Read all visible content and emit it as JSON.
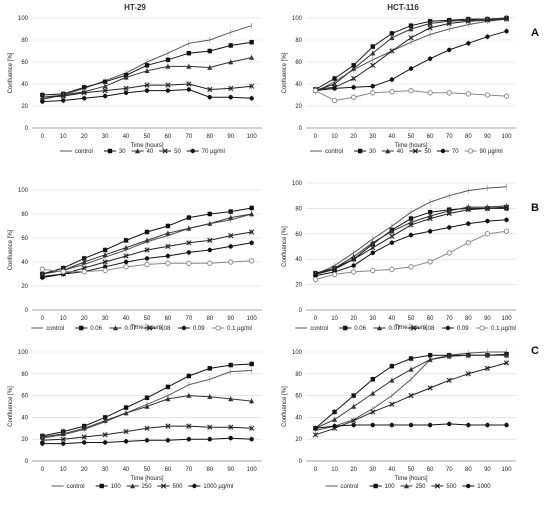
{
  "panel_titles": {
    "left": "HT-29",
    "right": "HCT-116"
  },
  "row_letters": [
    "A",
    "B",
    "C"
  ],
  "chart_data": [
    {
      "id": "A-HT29",
      "type": "line",
      "title": "HT-29",
      "xlabel": "Time [hours]",
      "ylabel": "Confluence [%]",
      "ylim": [
        0,
        100
      ],
      "yticks": [
        0,
        20,
        40,
        60,
        80,
        100
      ],
      "x": [
        0,
        10,
        20,
        30,
        40,
        50,
        60,
        70,
        80,
        90,
        100
      ],
      "grid": true,
      "legend": [
        "control",
        "30",
        "40",
        "50",
        "70 µg/ml"
      ],
      "series": [
        {
          "name": "control",
          "color": "#555555",
          "marker": "none",
          "values": [
            28,
            30,
            36,
            43,
            50,
            60,
            68,
            77,
            80,
            87,
            93
          ]
        },
        {
          "name": "30",
          "color": "#111111",
          "marker": "square",
          "values": [
            30,
            31,
            37,
            42,
            48,
            57,
            62,
            68,
            70,
            75,
            78
          ]
        },
        {
          "name": "40",
          "color": "#333333",
          "marker": "triangle",
          "values": [
            26,
            30,
            33,
            38,
            46,
            52,
            56,
            56,
            55,
            60,
            64
          ]
        },
        {
          "name": "50",
          "color": "#222222",
          "marker": "cross",
          "values": [
            28,
            29,
            32,
            34,
            36,
            39,
            39,
            40,
            35,
            36,
            38
          ]
        },
        {
          "name": "70 µg/ml",
          "color": "#111111",
          "marker": "diamond",
          "values": [
            24,
            25,
            27,
            29,
            32,
            34,
            34,
            35,
            28,
            28,
            27
          ]
        }
      ]
    },
    {
      "id": "A-HCT116",
      "type": "line",
      "title": "HCT-116",
      "xlabel": "Time [hours]",
      "ylabel": "Confluence [%]",
      "ylim": [
        0,
        100
      ],
      "yticks": [
        0,
        20,
        40,
        60,
        80,
        100
      ],
      "x": [
        0,
        10,
        20,
        30,
        40,
        50,
        60,
        70,
        80,
        90,
        100
      ],
      "grid": true,
      "legend": [
        "control",
        "30",
        "40",
        "50",
        "70",
        "90 µg/ml"
      ],
      "series": [
        {
          "name": "control",
          "color": "#555555",
          "marker": "none",
          "values": [
            33,
            42,
            53,
            62,
            70,
            78,
            85,
            90,
            94,
            97,
            99
          ]
        },
        {
          "name": "30",
          "color": "#111111",
          "marker": "square",
          "values": [
            35,
            45,
            57,
            74,
            86,
            93,
            97,
            98,
            99,
            99,
            100
          ]
        },
        {
          "name": "40",
          "color": "#333333",
          "marker": "triangle",
          "values": [
            34,
            40,
            54,
            68,
            82,
            90,
            95,
            97,
            98,
            99,
            100
          ]
        },
        {
          "name": "50",
          "color": "#222222",
          "marker": "cross",
          "values": [
            35,
            37,
            45,
            57,
            70,
            82,
            91,
            95,
            97,
            98,
            99
          ]
        },
        {
          "name": "70",
          "color": "#111111",
          "marker": "diamond",
          "values": [
            34,
            36,
            37,
            38,
            44,
            54,
            63,
            71,
            77,
            83,
            88
          ]
        },
        {
          "name": "90 µg/ml",
          "color": "#888888",
          "marker": "circle",
          "values": [
            34,
            25,
            28,
            32,
            33,
            34,
            32,
            32,
            31,
            30,
            29
          ]
        }
      ]
    },
    {
      "id": "B-HT29",
      "type": "line",
      "title": "",
      "xlabel": "Time [hours]",
      "ylabel": "Confluence [%]",
      "ylim": [
        0,
        100
      ],
      "yticks": [
        0,
        20,
        40,
        60,
        80,
        100
      ],
      "x": [
        0,
        10,
        20,
        30,
        40,
        50,
        60,
        70,
        80,
        90,
        100
      ],
      "grid": true,
      "legend": [
        "control",
        "0.06",
        "0.07",
        "0.08",
        "0.09",
        "0.1 µg/ml"
      ],
      "series": [
        {
          "name": "control",
          "color": "#555555",
          "marker": "none",
          "values": [
            30,
            33,
            38,
            44,
            50,
            57,
            62,
            68,
            72,
            75,
            80
          ]
        },
        {
          "name": "0.06",
          "color": "#111111",
          "marker": "square",
          "values": [
            30,
            35,
            43,
            50,
            58,
            65,
            70,
            77,
            80,
            82,
            85
          ]
        },
        {
          "name": "0.07",
          "color": "#333333",
          "marker": "triangle",
          "values": [
            30,
            33,
            40,
            46,
            52,
            58,
            64,
            68,
            72,
            77,
            80
          ]
        },
        {
          "name": "0.08",
          "color": "#222222",
          "marker": "cross",
          "values": [
            28,
            30,
            35,
            40,
            45,
            50,
            53,
            56,
            58,
            62,
            65
          ]
        },
        {
          "name": "0.09",
          "color": "#111111",
          "marker": "diamond",
          "values": [
            27,
            30,
            32,
            36,
            40,
            43,
            45,
            48,
            50,
            53,
            56
          ]
        },
        {
          "name": "0.1 µg/ml",
          "color": "#888888",
          "marker": "circle",
          "values": [
            34,
            32,
            32,
            33,
            36,
            38,
            39,
            39,
            39,
            40,
            41
          ]
        }
      ]
    },
    {
      "id": "B-HCT116",
      "type": "line",
      "title": "",
      "xlabel": "Time [hours]",
      "ylabel": "Confluence [%]",
      "ylim": [
        0,
        100
      ],
      "yticks": [
        0,
        20,
        40,
        60,
        80,
        100
      ],
      "x": [
        0,
        10,
        20,
        30,
        40,
        50,
        60,
        70,
        80,
        90,
        100
      ],
      "grid": true,
      "legend": [
        "control",
        "0.06",
        "0.07",
        "0.08",
        "0.09",
        "0.1 µg/ml"
      ],
      "series": [
        {
          "name": "control",
          "color": "#555555",
          "marker": "none",
          "values": [
            28,
            35,
            45,
            56,
            66,
            77,
            85,
            90,
            94,
            96,
            97
          ]
        },
        {
          "name": "0.06",
          "color": "#111111",
          "marker": "square",
          "values": [
            29,
            33,
            40,
            52,
            63,
            72,
            77,
            79,
            80,
            80,
            80
          ]
        },
        {
          "name": "0.07",
          "color": "#333333",
          "marker": "triangle",
          "values": [
            28,
            33,
            42,
            53,
            62,
            69,
            74,
            78,
            81,
            81,
            82
          ]
        },
        {
          "name": "0.08",
          "color": "#222222",
          "marker": "cross",
          "values": [
            28,
            32,
            40,
            49,
            58,
            67,
            72,
            76,
            79,
            80,
            81
          ]
        },
        {
          "name": "0.09",
          "color": "#111111",
          "marker": "diamond",
          "values": [
            27,
            30,
            35,
            45,
            53,
            59,
            62,
            65,
            68,
            70,
            71
          ]
        },
        {
          "name": "0.1 µg/ml",
          "color": "#888888",
          "marker": "circle",
          "values": [
            24,
            28,
            30,
            31,
            32,
            34,
            38,
            45,
            53,
            60,
            62
          ]
        }
      ]
    },
    {
      "id": "C-HT29",
      "type": "line",
      "title": "",
      "xlabel": "Time [hours]",
      "ylabel": "Confluence [%]",
      "ylim": [
        0,
        100
      ],
      "yticks": [
        0,
        20,
        40,
        60,
        80,
        100
      ],
      "x": [
        0,
        10,
        20,
        30,
        40,
        50,
        60,
        70,
        80,
        90,
        100
      ],
      "grid": true,
      "legend": [
        "control",
        "100",
        "250",
        "500",
        "1000 µg/ml"
      ],
      "series": [
        {
          "name": "control",
          "color": "#555555",
          "marker": "none",
          "values": [
            21,
            24,
            29,
            36,
            44,
            52,
            60,
            70,
            75,
            82,
            83
          ]
        },
        {
          "name": "100",
          "color": "#111111",
          "marker": "square",
          "values": [
            23,
            27,
            32,
            40,
            49,
            58,
            68,
            78,
            85,
            88,
            89
          ]
        },
        {
          "name": "250",
          "color": "#333333",
          "marker": "triangle",
          "values": [
            22,
            25,
            30,
            37,
            44,
            50,
            57,
            60,
            59,
            57,
            55
          ]
        },
        {
          "name": "500",
          "color": "#222222",
          "marker": "cross",
          "values": [
            19,
            20,
            22,
            24,
            27,
            30,
            32,
            32,
            31,
            31,
            30
          ]
        },
        {
          "name": "1000 µg/ml",
          "color": "#111111",
          "marker": "diamond",
          "values": [
            16,
            16,
            17,
            17,
            18,
            19,
            19,
            20,
            20,
            21,
            20
          ]
        }
      ]
    },
    {
      "id": "C-HCT116",
      "type": "line",
      "title": "",
      "xlabel": "Time [hours]",
      "ylabel": "Confluence [%]",
      "ylim": [
        0,
        100
      ],
      "yticks": [
        0,
        20,
        40,
        60,
        80,
        100
      ],
      "x": [
        0,
        10,
        20,
        30,
        40,
        50,
        60,
        70,
        80,
        90,
        100
      ],
      "grid": true,
      "legend": [
        "control",
        "100",
        "250",
        "500",
        "1000"
      ],
      "series": [
        {
          "name": "control",
          "color": "#555555",
          "marker": "none",
          "values": [
            28,
            32,
            38,
            48,
            60,
            75,
            93,
            97,
            99,
            100,
            100
          ]
        },
        {
          "name": "100",
          "color": "#111111",
          "marker": "square",
          "values": [
            30,
            45,
            60,
            75,
            87,
            94,
            97,
            97,
            97,
            97,
            98
          ]
        },
        {
          "name": "250",
          "color": "#333333",
          "marker": "triangle",
          "values": [
            30,
            38,
            50,
            62,
            74,
            84,
            93,
            96,
            97,
            97,
            97
          ]
        },
        {
          "name": "500",
          "color": "#222222",
          "marker": "cross",
          "values": [
            24,
            30,
            37,
            45,
            52,
            60,
            67,
            74,
            80,
            85,
            90
          ]
        },
        {
          "name": "1000",
          "color": "#111111",
          "marker": "diamond",
          "values": [
            30,
            32,
            33,
            33,
            33,
            33,
            33,
            34,
            33,
            33,
            33
          ]
        }
      ]
    }
  ]
}
